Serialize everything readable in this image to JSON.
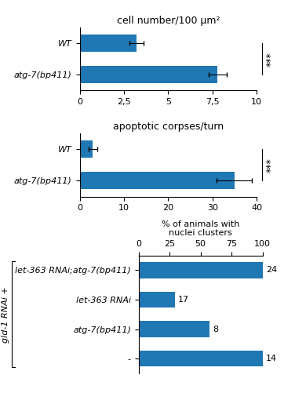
{
  "chart_data": [
    {
      "type": "bar",
      "orientation": "horizontal",
      "title": "cell number/100 μm²",
      "categories": [
        "atg-7(bp411)",
        "WT"
      ],
      "values": [
        7.8,
        3.2
      ],
      "errors": [
        0.5,
        0.4
      ],
      "xlim": [
        0,
        10
      ],
      "xticks": [
        0,
        {
          "value": 2.5,
          "label": "2,5"
        },
        5,
        {
          "value": 7.5,
          "label": "7,5"
        },
        10
      ],
      "annotations": [
        "***"
      ]
    },
    {
      "type": "bar",
      "orientation": "horizontal",
      "title": "apoptotic corpses/turn",
      "categories": [
        "atg-7(bp411)",
        "WT"
      ],
      "values": [
        35,
        3
      ],
      "errors": [
        4,
        1
      ],
      "xlim": [
        0,
        40
      ],
      "xticks": [
        0,
        10,
        20,
        30,
        40
      ],
      "annotations": [
        "***"
      ]
    },
    {
      "type": "bar",
      "orientation": "horizontal",
      "categories": [
        "-",
        "atg-7(bp411)",
        "let-363 RNAi",
        "let-363 RNAi;atg-7(bp411)"
      ],
      "values": [
        100,
        57,
        29,
        100
      ],
      "n": [
        14,
        8,
        17,
        24
      ],
      "xlabel": "% of animals with\nnuclei clusters",
      "xlim": [
        0,
        100
      ],
      "xticks": [
        0,
        25,
        50,
        75,
        100
      ],
      "annotations": [
        "gld-1 RNAi +"
      ]
    }
  ]
}
